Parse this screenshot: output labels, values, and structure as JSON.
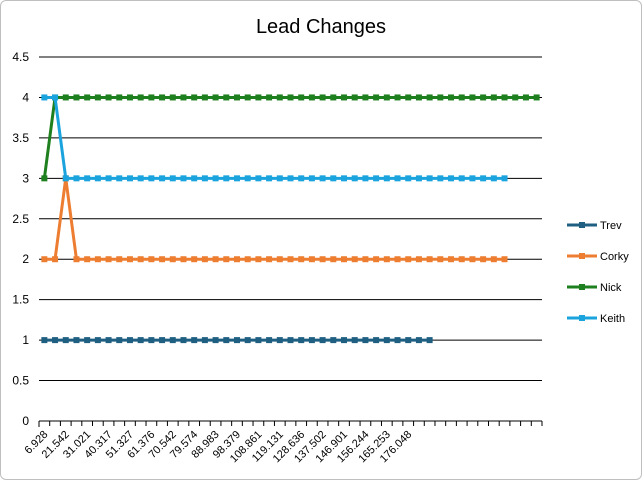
{
  "chart_data": {
    "type": "line",
    "title": "Lead Changes",
    "xlabel": "",
    "ylabel": "",
    "ylim": [
      0,
      4.5
    ],
    "y_ticks": [
      "0",
      "0.5",
      "1",
      "1.5",
      "2",
      "2.5",
      "3",
      "3.5",
      "4",
      "4.5"
    ],
    "x_tick_labels": [
      "6.928",
      "21.542",
      "31.021",
      "40.317",
      "51.327",
      "61.376",
      "70.542",
      "79.574",
      "88.983",
      "98.379",
      "108.861",
      "119.131",
      "128.636",
      "137.502",
      "146.901",
      "156.244",
      "165.253",
      "176.048"
    ],
    "category_count": 47,
    "grid": "horizontal",
    "legend_position": "right",
    "series": [
      {
        "name": "Trev",
        "color": "#1f5f82",
        "values": [
          1,
          1,
          1,
          1,
          1,
          1,
          1,
          1,
          1,
          1,
          1,
          1,
          1,
          1,
          1,
          1,
          1,
          1,
          1,
          1,
          1,
          1,
          1,
          1,
          1,
          1,
          1,
          1,
          1,
          1,
          1,
          1,
          1,
          1,
          1,
          1,
          1
        ]
      },
      {
        "name": "Corky",
        "color": "#ed7d31",
        "values": [
          2,
          2,
          3,
          2,
          2,
          2,
          2,
          2,
          2,
          2,
          2,
          2,
          2,
          2,
          2,
          2,
          2,
          2,
          2,
          2,
          2,
          2,
          2,
          2,
          2,
          2,
          2,
          2,
          2,
          2,
          2,
          2,
          2,
          2,
          2,
          2,
          2,
          2,
          2,
          2,
          2,
          2,
          2,
          2
        ]
      },
      {
        "name": "Nick",
        "color": "#1e7f1e",
        "values": [
          3,
          4,
          4,
          4,
          4,
          4,
          4,
          4,
          4,
          4,
          4,
          4,
          4,
          4,
          4,
          4,
          4,
          4,
          4,
          4,
          4,
          4,
          4,
          4,
          4,
          4,
          4,
          4,
          4,
          4,
          4,
          4,
          4,
          4,
          4,
          4,
          4,
          4,
          4,
          4,
          4,
          4,
          4,
          4,
          4,
          4,
          4
        ]
      },
      {
        "name": "Keith",
        "color": "#1aa3dd",
        "values": [
          4,
          4,
          3,
          3,
          3,
          3,
          3,
          3,
          3,
          3,
          3,
          3,
          3,
          3,
          3,
          3,
          3,
          3,
          3,
          3,
          3,
          3,
          3,
          3,
          3,
          3,
          3,
          3,
          3,
          3,
          3,
          3,
          3,
          3,
          3,
          3,
          3,
          3,
          3,
          3,
          3,
          3,
          3,
          3
        ]
      }
    ]
  }
}
